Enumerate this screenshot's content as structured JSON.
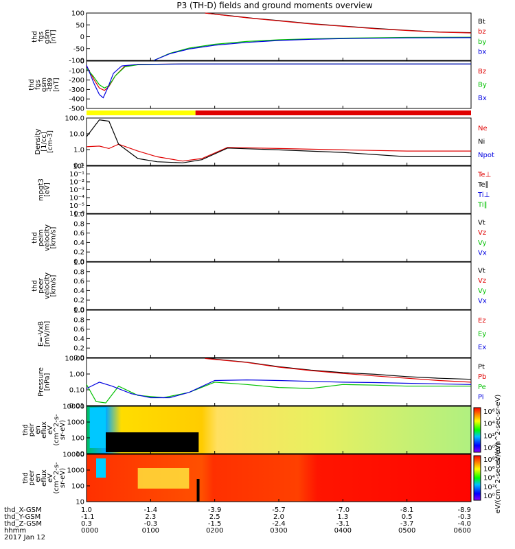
{
  "title": "P3 (TH-D) fields and ground moments overview",
  "date": "2017 Jan 12",
  "colors": {
    "black": "#000000",
    "red": "#e00000",
    "green": "#00c000",
    "blue": "#0000e0",
    "yellow": "#ffff00"
  },
  "panels": [
    {
      "id": "fgs-gsm",
      "ylabel": [
        "thd",
        "fgs",
        "gsm",
        "[nT]"
      ],
      "yticks": [
        "100",
        "50",
        "0",
        "-50",
        "-100"
      ],
      "legend": [
        {
          "t": "Bt",
          "c": "black"
        },
        {
          "t": "bz",
          "c": "red"
        },
        {
          "t": "by",
          "c": "green"
        },
        {
          "t": "bx",
          "c": "blue"
        }
      ]
    },
    {
      "id": "fgs-gsm-t89",
      "ylabel": [
        "thd",
        "fgs",
        "gsm",
        "-t89",
        "[nT]"
      ],
      "yticks": [
        "0",
        "-100",
        "-200",
        "-300",
        "-400",
        "-500"
      ],
      "legend": [
        {
          "t": "Bz",
          "c": "red"
        },
        {
          "t": "By",
          "c": "green"
        },
        {
          "t": "Bx",
          "c": "blue"
        }
      ]
    },
    {
      "id": "density",
      "ylabel": [
        "Density",
        "[1/cc]",
        "[cm-3]"
      ],
      "yticks": [
        "100.0",
        "10.0",
        "1.0",
        "0.1"
      ],
      "legend": [
        {
          "t": "Ne",
          "c": "red"
        },
        {
          "t": "Ni",
          "c": "black"
        },
        {
          "t": "Npot",
          "c": "blue"
        }
      ]
    },
    {
      "id": "temperature",
      "ylabel": [
        "mpgt3",
        "[eV]"
      ],
      "yticks": [
        "10¹",
        "10⁻¹",
        "10⁻²",
        "10⁻³",
        "10⁻⁴",
        "10⁻⁵",
        "10⁻⁶"
      ],
      "legend": [
        {
          "t": "Te⊥",
          "c": "red"
        },
        {
          "t": "Te∥",
          "c": "black"
        },
        {
          "t": "Ti⊥",
          "c": "blue"
        },
        {
          "t": "Ti∥",
          "c": "green"
        }
      ]
    },
    {
      "id": "peim-velocity",
      "ylabel": [
        "thd",
        "peim",
        "velocity",
        "[km/s]"
      ],
      "yticks": [
        "1.0",
        "0.8",
        "0.6",
        "0.4",
        "0.2",
        "0.0"
      ],
      "legend": [
        {
          "t": "Vt",
          "c": "black"
        },
        {
          "t": "Vz",
          "c": "red"
        },
        {
          "t": "Vy",
          "c": "green"
        },
        {
          "t": "Vx",
          "c": "blue"
        }
      ]
    },
    {
      "id": "peer-velocity",
      "ylabel": [
        "thd",
        "peer",
        "velocity",
        "[km/s]"
      ],
      "yticks": [
        "1.0",
        "0.8",
        "0.6",
        "0.4",
        "0.2",
        "0.0"
      ],
      "legend": [
        {
          "t": "Vt",
          "c": "black"
        },
        {
          "t": "Vz",
          "c": "red"
        },
        {
          "t": "Vy",
          "c": "green"
        },
        {
          "t": "Vx",
          "c": "blue"
        }
      ]
    },
    {
      "id": "efield",
      "ylabel": [
        "E=-VxB",
        "[mV/m]"
      ],
      "yticks": [
        "1.0",
        "0.8",
        "0.6",
        "0.4",
        "0.2",
        "0.0"
      ],
      "legend": [
        {
          "t": "Ez",
          "c": "red"
        },
        {
          "t": "Ey",
          "c": "green"
        },
        {
          "t": "Ex",
          "c": "blue"
        }
      ]
    },
    {
      "id": "pressure",
      "ylabel": [
        "Pressure",
        "[nPa]"
      ],
      "yticks": [
        "10.00",
        "1.00",
        "0.10",
        "0.01"
      ],
      "legend": [
        {
          "t": "Pt",
          "c": "black"
        },
        {
          "t": "Pb",
          "c": "red"
        },
        {
          "t": "Pe",
          "c": "green"
        },
        {
          "t": "Pi",
          "c": "blue"
        }
      ]
    },
    {
      "id": "peir-spectrogram",
      "ylabel": [
        "thd",
        "peir",
        "en",
        "eflux",
        "eV",
        "(cm^2-s-",
        "sr-eV)"
      ],
      "yticks": [
        "10000",
        "1000",
        "100",
        "10"
      ],
      "cbar_ticks": [
        "10⁶",
        "10⁴",
        "10²",
        "10⁰"
      ],
      "cbar_label": "eV/(cm^2-sec-sr-eV)"
    },
    {
      "id": "peer-spectrogram",
      "ylabel": [
        "thd",
        "peer",
        "en",
        "eflux",
        "eV",
        "(cm^2-s-",
        "sr-eV)"
      ],
      "yticks": [
        "10000",
        "1000",
        "100",
        "10"
      ],
      "cbar_ticks": [
        "10⁸",
        "10⁶",
        "10⁴",
        "10²",
        "10⁰"
      ],
      "cbar_label": "eV/(cm^2-sec-sr-eV)"
    }
  ],
  "footer": {
    "rows": [
      {
        "label": "thd_X-GSM",
        "values": [
          "1.0",
          "-1.4",
          "-3.9",
          "-5.7",
          "-7.0",
          "-8.1",
          "-8.9"
        ]
      },
      {
        "label": "thd_Y-GSM",
        "values": [
          "-1.1",
          "2.3",
          "2.5",
          "2.0",
          "1.3",
          "0.5",
          "-0.3"
        ]
      },
      {
        "label": "thd_Z-GSM",
        "values": [
          "0.3",
          "-0.3",
          "-1.5",
          "-2.4",
          "-3.1",
          "-3.7",
          "-4.0"
        ]
      },
      {
        "label": "hhmm",
        "values": [
          "0000",
          "0100",
          "0200",
          "0300",
          "0400",
          "0500",
          "0600"
        ]
      }
    ]
  },
  "chart_data": {
    "type": "line",
    "title": "P3 (TH-D) fields and ground moments overview",
    "x_label": "hhmm",
    "x_ticks": [
      "0000",
      "0100",
      "0200",
      "0300",
      "0400",
      "0500",
      "0600"
    ],
    "xlim_hours": [
      0,
      6
    ],
    "panels": [
      {
        "name": "thd fgs gsm [nT]",
        "ylim": [
          -100,
          100
        ],
        "series": [
          {
            "name": "Bt",
            "x": [
              1.85,
              2.2,
              2.6,
              3.0,
              3.5,
              4.0,
              4.5,
              5.0,
              5.5,
              6.0
            ],
            "y": [
              100,
              90,
              78,
              68,
              55,
              45,
              35,
              27,
              20,
              17
            ]
          },
          {
            "name": "bz",
            "x": [
              1.85,
              2.2,
              2.6,
              3.0,
              3.5,
              4.0,
              4.5,
              5.0,
              5.5,
              6.0
            ],
            "y": [
              100,
              89,
              77,
              67,
              54,
              44,
              34,
              26,
              19,
              16
            ]
          },
          {
            "name": "by",
            "x": [
              1.05,
              1.3,
              1.6,
              2.0,
              2.5,
              3.0,
              3.5,
              4.0,
              5.0,
              6.0
            ],
            "y": [
              -100,
              -70,
              -48,
              -32,
              -20,
              -13,
              -9,
              -6,
              -3,
              -2
            ]
          },
          {
            "name": "bx",
            "x": [
              1.05,
              1.3,
              1.6,
              2.0,
              2.5,
              3.0,
              3.5,
              4.0,
              5.0,
              6.0
            ],
            "y": [
              -100,
              -72,
              -52,
              -36,
              -24,
              -16,
              -11,
              -8,
              -5,
              -4
            ]
          }
        ]
      },
      {
        "name": "thd fgs gsm -t89 [nT]",
        "ylim": [
          -550,
          30
        ],
        "series": [
          {
            "name": "Bz",
            "x": [
              0.0,
              0.12,
              0.2,
              0.28,
              0.35,
              0.45,
              0.6,
              0.8,
              1.5,
              6.0
            ],
            "y": [
              -30,
              -200,
              -300,
              -330,
              -280,
              -150,
              -30,
              -10,
              -5,
              -5
            ]
          },
          {
            "name": "By",
            "x": [
              0.0,
              0.1,
              0.2,
              0.28,
              0.35,
              0.45,
              0.6,
              0.8,
              1.5,
              6.0
            ],
            "y": [
              -60,
              -150,
              -260,
              -300,
              -270,
              -150,
              -40,
              -15,
              -5,
              -5
            ]
          },
          {
            "name": "Bx",
            "x": [
              0.0,
              0.12,
              0.2,
              0.26,
              0.33,
              0.42,
              0.55,
              0.8,
              1.5,
              6.0
            ],
            "y": [
              -20,
              -250,
              -380,
              -420,
              -300,
              -120,
              -30,
              -10,
              -5,
              -5
            ]
          }
        ]
      },
      {
        "name": "Density [1/cc]",
        "log": true,
        "ylim": [
          0.1,
          200
        ],
        "series": [
          {
            "name": "Ne",
            "x": [
              0.0,
              0.2,
              0.35,
              0.5,
              0.8,
              1.1,
              1.5,
              1.8,
              2.2,
              3.0,
              4.0,
              5.0,
              6.0
            ],
            "y": [
              2.0,
              2.2,
              1.5,
              3.0,
              1.0,
              0.4,
              0.2,
              0.3,
              1.8,
              1.5,
              1.2,
              1.0,
              1.0
            ]
          },
          {
            "name": "Ni",
            "x": [
              0.0,
              0.2,
              0.35,
              0.5,
              0.8,
              1.1,
              1.5,
              1.8,
              2.2,
              3.0,
              4.0,
              5.0,
              6.0
            ],
            "y": [
              10,
              150,
              120,
              3,
              0.3,
              0.18,
              0.15,
              0.25,
              1.6,
              1.2,
              0.8,
              0.4,
              0.4
            ]
          }
        ]
      },
      {
        "name": "mpgt3 [eV]",
        "log": true,
        "series": []
      },
      {
        "name": "thd peim velocity [km/s]",
        "ylim": [
          0,
          1
        ],
        "series": []
      },
      {
        "name": "thd peer velocity [km/s]",
        "ylim": [
          0,
          1
        ],
        "series": []
      },
      {
        "name": "E=-VxB [mV/m]",
        "ylim": [
          0,
          1
        ],
        "series": []
      },
      {
        "name": "Pressure [nPa]",
        "log": true,
        "ylim": [
          0.005,
          20
        ],
        "series": [
          {
            "name": "Pt",
            "x": [
              1.85,
              2.5,
              3.0,
              3.5,
              4.0,
              4.5,
              5.0,
              5.5,
              6.0
            ],
            "y": [
              20,
              10,
              4.5,
              2.5,
              1.6,
              1.2,
              0.8,
              0.6,
              0.5
            ]
          },
          {
            "name": "Pb",
            "x": [
              1.85,
              2.5,
              3.0,
              3.5,
              4.0,
              4.5,
              5.0,
              5.5,
              6.0
            ],
            "y": [
              19,
              9.5,
              4.2,
              2.3,
              1.4,
              0.9,
              0.6,
              0.4,
              0.3
            ]
          },
          {
            "name": "Pe",
            "x": [
              0.0,
              0.15,
              0.3,
              0.5,
              0.8,
              1.2,
              1.6,
              2.0,
              2.5,
              3.0,
              3.5,
              4.0,
              4.5,
              5.0,
              6.0
            ],
            "y": [
              0.2,
              0.01,
              0.008,
              0.15,
              0.03,
              0.02,
              0.05,
              0.3,
              0.2,
              0.12,
              0.1,
              0.2,
              0.18,
              0.15,
              0.15
            ]
          },
          {
            "name": "Pi",
            "x": [
              0.0,
              0.2,
              0.4,
              0.7,
              1.0,
              1.3,
              1.6,
              2.0,
              2.5,
              3.0,
              3.5,
              4.0,
              4.5,
              5.0,
              6.0
            ],
            "y": [
              0.1,
              0.3,
              0.15,
              0.04,
              0.02,
              0.02,
              0.05,
              0.4,
              0.45,
              0.4,
              0.35,
              0.3,
              0.28,
              0.25,
              0.2
            ]
          }
        ]
      },
      {
        "name": "thd peir en eflux",
        "type": "heatmap",
        "log": true,
        "ylim": [
          5,
          20000
        ]
      },
      {
        "name": "thd peer en eflux",
        "type": "heatmap",
        "log": true,
        "ylim": [
          5,
          20000
        ]
      }
    ]
  }
}
